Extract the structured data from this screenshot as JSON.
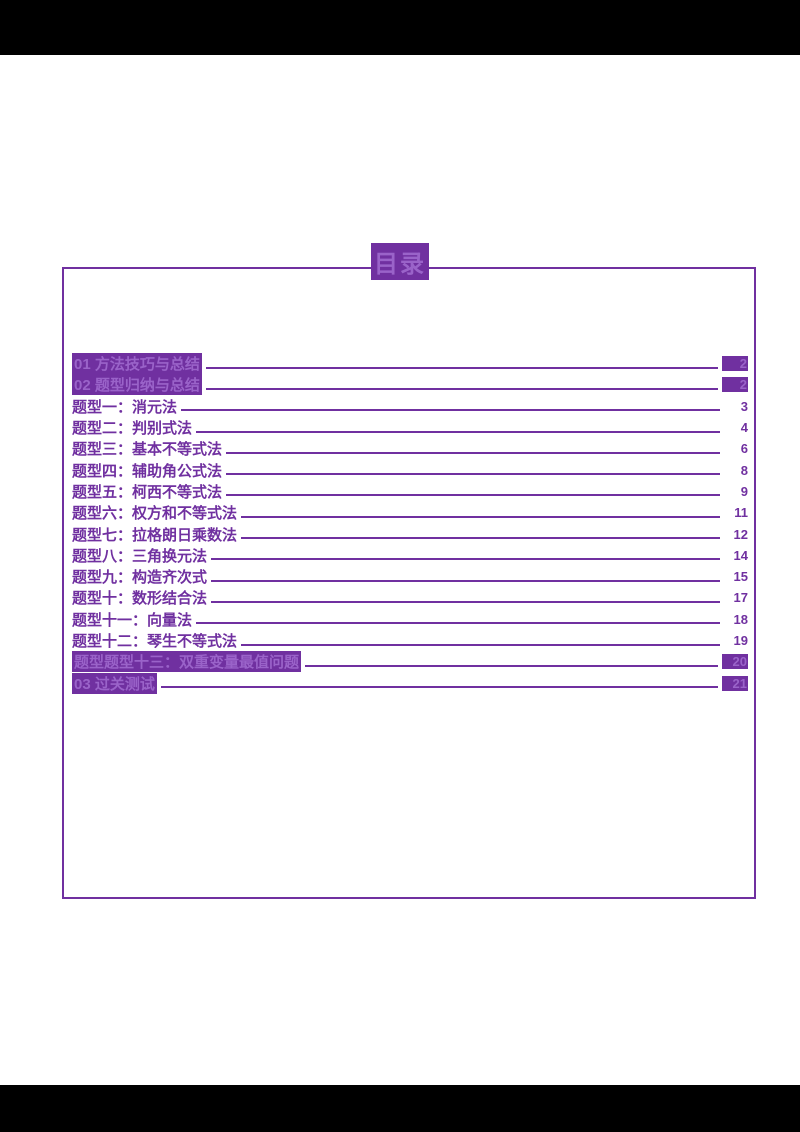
{
  "toc": {
    "title": "目录",
    "accent_color": "#7030A0",
    "entries": [
      {
        "label": "01 方法技巧与总结",
        "page": "2",
        "highlight": true
      },
      {
        "label": "02 题型归纳与总结",
        "page": "2",
        "highlight": true
      },
      {
        "label": "题型一：消元法",
        "page": "3",
        "highlight": false
      },
      {
        "label": "题型二：判别式法",
        "page": "4",
        "highlight": false
      },
      {
        "label": "题型三：基本不等式法",
        "page": "6",
        "highlight": false
      },
      {
        "label": "题型四：辅助角公式法",
        "page": "8",
        "highlight": false
      },
      {
        "label": "题型五：柯西不等式法",
        "page": "9",
        "highlight": false
      },
      {
        "label": "题型六：权方和不等式法",
        "page": "11",
        "highlight": false
      },
      {
        "label": "题型七：拉格朗日乘数法",
        "page": "12",
        "highlight": false
      },
      {
        "label": "题型八：三角换元法",
        "page": "14",
        "highlight": false
      },
      {
        "label": "题型九：构造齐次式",
        "page": "15",
        "highlight": false
      },
      {
        "label": "题型十：数形结合法",
        "page": "17",
        "highlight": false
      },
      {
        "label": "题型十一：向量法",
        "page": "18",
        "highlight": false
      },
      {
        "label": "题型十二：琴生不等式法",
        "page": "19",
        "highlight": false
      },
      {
        "label": "题型题型十三：双重变量最值问题",
        "page": "20",
        "highlight": true
      },
      {
        "label": "03 过关测试",
        "page": "21",
        "highlight": true
      }
    ]
  }
}
